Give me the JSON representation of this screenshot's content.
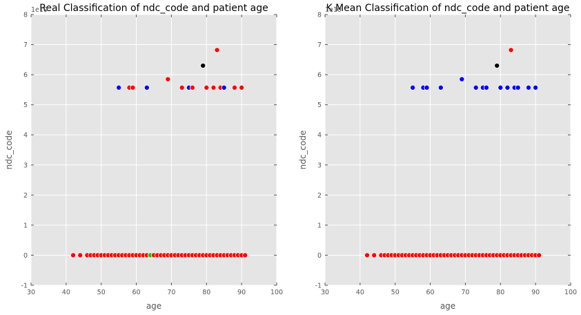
{
  "chart_data": [
    {
      "type": "scatter",
      "title": "Real Classification of ndc_code and patient age",
      "xlabel": "age",
      "ylabel": "ndc_code",
      "y_offset_label": "1e10",
      "xlim": [
        30,
        100
      ],
      "ylim": [
        -1,
        8
      ],
      "xticks": [
        30,
        40,
        50,
        60,
        70,
        80,
        90,
        100
      ],
      "yticks": [
        -1,
        0,
        1,
        2,
        3,
        4,
        5,
        6,
        7,
        8
      ],
      "grid": true,
      "points": [
        {
          "x": 42,
          "y": 0,
          "color": "red"
        },
        {
          "x": 44,
          "y": 0,
          "color": "red"
        },
        {
          "x": 46,
          "y": 0,
          "color": "red"
        },
        {
          "x": 47,
          "y": 0,
          "color": "red"
        },
        {
          "x": 48,
          "y": 0,
          "color": "red"
        },
        {
          "x": 49,
          "y": 0,
          "color": "red"
        },
        {
          "x": 50,
          "y": 0,
          "color": "red"
        },
        {
          "x": 51,
          "y": 0,
          "color": "red"
        },
        {
          "x": 52,
          "y": 0,
          "color": "red"
        },
        {
          "x": 53,
          "y": 0,
          "color": "red"
        },
        {
          "x": 54,
          "y": 0,
          "color": "red"
        },
        {
          "x": 55,
          "y": 0,
          "color": "red"
        },
        {
          "x": 56,
          "y": 0,
          "color": "red"
        },
        {
          "x": 57,
          "y": 0,
          "color": "red"
        },
        {
          "x": 58,
          "y": 0,
          "color": "red"
        },
        {
          "x": 59,
          "y": 0,
          "color": "red"
        },
        {
          "x": 60,
          "y": 0,
          "color": "red"
        },
        {
          "x": 61,
          "y": 0,
          "color": "red"
        },
        {
          "x": 62,
          "y": 0,
          "color": "red"
        },
        {
          "x": 63,
          "y": 0,
          "color": "red"
        },
        {
          "x": 64,
          "y": 0,
          "color": "green"
        },
        {
          "x": 65,
          "y": 0,
          "color": "red"
        },
        {
          "x": 66,
          "y": 0,
          "color": "red"
        },
        {
          "x": 67,
          "y": 0,
          "color": "red"
        },
        {
          "x": 68,
          "y": 0,
          "color": "red"
        },
        {
          "x": 69,
          "y": 0,
          "color": "red"
        },
        {
          "x": 70,
          "y": 0,
          "color": "red"
        },
        {
          "x": 71,
          "y": 0,
          "color": "red"
        },
        {
          "x": 72,
          "y": 0,
          "color": "red"
        },
        {
          "x": 73,
          "y": 0,
          "color": "red"
        },
        {
          "x": 74,
          "y": 0,
          "color": "red"
        },
        {
          "x": 75,
          "y": 0,
          "color": "red"
        },
        {
          "x": 76,
          "y": 0,
          "color": "red"
        },
        {
          "x": 77,
          "y": 0,
          "color": "red"
        },
        {
          "x": 78,
          "y": 0,
          "color": "red"
        },
        {
          "x": 79,
          "y": 0,
          "color": "red"
        },
        {
          "x": 80,
          "y": 0,
          "color": "red"
        },
        {
          "x": 81,
          "y": 0,
          "color": "red"
        },
        {
          "x": 82,
          "y": 0,
          "color": "red"
        },
        {
          "x": 83,
          "y": 0,
          "color": "red"
        },
        {
          "x": 84,
          "y": 0,
          "color": "red"
        },
        {
          "x": 85,
          "y": 0,
          "color": "red"
        },
        {
          "x": 86,
          "y": 0,
          "color": "red"
        },
        {
          "x": 87,
          "y": 0,
          "color": "red"
        },
        {
          "x": 88,
          "y": 0,
          "color": "red"
        },
        {
          "x": 89,
          "y": 0,
          "color": "red"
        },
        {
          "x": 90,
          "y": 0,
          "color": "red"
        },
        {
          "x": 91,
          "y": 0,
          "color": "red"
        },
        {
          "x": 55,
          "y": 5.57,
          "color": "blue"
        },
        {
          "x": 58,
          "y": 5.57,
          "color": "red"
        },
        {
          "x": 59,
          "y": 5.57,
          "color": "red"
        },
        {
          "x": 63,
          "y": 5.57,
          "color": "blue"
        },
        {
          "x": 69,
          "y": 5.85,
          "color": "red"
        },
        {
          "x": 73,
          "y": 5.57,
          "color": "red"
        },
        {
          "x": 75,
          "y": 5.57,
          "color": "blue"
        },
        {
          "x": 76,
          "y": 5.57,
          "color": "red"
        },
        {
          "x": 79,
          "y": 6.3,
          "color": "black"
        },
        {
          "x": 80,
          "y": 5.57,
          "color": "red"
        },
        {
          "x": 82,
          "y": 5.57,
          "color": "red"
        },
        {
          "x": 83,
          "y": 6.82,
          "color": "red"
        },
        {
          "x": 84,
          "y": 5.57,
          "color": "red"
        },
        {
          "x": 85,
          "y": 5.57,
          "color": "blue"
        },
        {
          "x": 88,
          "y": 5.57,
          "color": "red"
        },
        {
          "x": 90,
          "y": 5.57,
          "color": "red"
        }
      ]
    },
    {
      "type": "scatter",
      "title": "K Mean Classification of ndc_code and patient age",
      "xlabel": "age",
      "ylabel": "ndc_code",
      "y_offset_label": "1e10",
      "xlim": [
        30,
        100
      ],
      "ylim": [
        -1,
        8
      ],
      "xticks": [
        30,
        40,
        50,
        60,
        70,
        80,
        90,
        100
      ],
      "yticks": [
        -1,
        0,
        1,
        2,
        3,
        4,
        5,
        6,
        7,
        8
      ],
      "grid": true,
      "points": [
        {
          "x": 42,
          "y": 0,
          "color": "red"
        },
        {
          "x": 44,
          "y": 0,
          "color": "red"
        },
        {
          "x": 46,
          "y": 0,
          "color": "red"
        },
        {
          "x": 47,
          "y": 0,
          "color": "red"
        },
        {
          "x": 48,
          "y": 0,
          "color": "red"
        },
        {
          "x": 49,
          "y": 0,
          "color": "red"
        },
        {
          "x": 50,
          "y": 0,
          "color": "red"
        },
        {
          "x": 51,
          "y": 0,
          "color": "red"
        },
        {
          "x": 52,
          "y": 0,
          "color": "red"
        },
        {
          "x": 53,
          "y": 0,
          "color": "red"
        },
        {
          "x": 54,
          "y": 0,
          "color": "red"
        },
        {
          "x": 55,
          "y": 0,
          "color": "red"
        },
        {
          "x": 56,
          "y": 0,
          "color": "red"
        },
        {
          "x": 57,
          "y": 0,
          "color": "red"
        },
        {
          "x": 58,
          "y": 0,
          "color": "red"
        },
        {
          "x": 59,
          "y": 0,
          "color": "red"
        },
        {
          "x": 60,
          "y": 0,
          "color": "red"
        },
        {
          "x": 61,
          "y": 0,
          "color": "red"
        },
        {
          "x": 62,
          "y": 0,
          "color": "red"
        },
        {
          "x": 63,
          "y": 0,
          "color": "red"
        },
        {
          "x": 64,
          "y": 0,
          "color": "red"
        },
        {
          "x": 65,
          "y": 0,
          "color": "red"
        },
        {
          "x": 66,
          "y": 0,
          "color": "red"
        },
        {
          "x": 67,
          "y": 0,
          "color": "red"
        },
        {
          "x": 68,
          "y": 0,
          "color": "red"
        },
        {
          "x": 69,
          "y": 0,
          "color": "red"
        },
        {
          "x": 70,
          "y": 0,
          "color": "red"
        },
        {
          "x": 71,
          "y": 0,
          "color": "red"
        },
        {
          "x": 72,
          "y": 0,
          "color": "red"
        },
        {
          "x": 73,
          "y": 0,
          "color": "red"
        },
        {
          "x": 74,
          "y": 0,
          "color": "red"
        },
        {
          "x": 75,
          "y": 0,
          "color": "red"
        },
        {
          "x": 76,
          "y": 0,
          "color": "red"
        },
        {
          "x": 77,
          "y": 0,
          "color": "red"
        },
        {
          "x": 78,
          "y": 0,
          "color": "red"
        },
        {
          "x": 79,
          "y": 0,
          "color": "red"
        },
        {
          "x": 80,
          "y": 0,
          "color": "red"
        },
        {
          "x": 81,
          "y": 0,
          "color": "red"
        },
        {
          "x": 82,
          "y": 0,
          "color": "red"
        },
        {
          "x": 83,
          "y": 0,
          "color": "red"
        },
        {
          "x": 84,
          "y": 0,
          "color": "red"
        },
        {
          "x": 85,
          "y": 0,
          "color": "red"
        },
        {
          "x": 86,
          "y": 0,
          "color": "red"
        },
        {
          "x": 87,
          "y": 0,
          "color": "red"
        },
        {
          "x": 88,
          "y": 0,
          "color": "red"
        },
        {
          "x": 89,
          "y": 0,
          "color": "red"
        },
        {
          "x": 90,
          "y": 0,
          "color": "red"
        },
        {
          "x": 91,
          "y": 0,
          "color": "red"
        },
        {
          "x": 55,
          "y": 5.57,
          "color": "blue"
        },
        {
          "x": 58,
          "y": 5.57,
          "color": "blue"
        },
        {
          "x": 59,
          "y": 5.57,
          "color": "blue"
        },
        {
          "x": 63,
          "y": 5.57,
          "color": "blue"
        },
        {
          "x": 69,
          "y": 5.85,
          "color": "blue"
        },
        {
          "x": 73,
          "y": 5.57,
          "color": "blue"
        },
        {
          "x": 75,
          "y": 5.57,
          "color": "blue"
        },
        {
          "x": 76,
          "y": 5.57,
          "color": "blue"
        },
        {
          "x": 79,
          "y": 6.3,
          "color": "black"
        },
        {
          "x": 80,
          "y": 5.57,
          "color": "blue"
        },
        {
          "x": 82,
          "y": 5.57,
          "color": "blue"
        },
        {
          "x": 83,
          "y": 6.82,
          "color": "red"
        },
        {
          "x": 84,
          "y": 5.57,
          "color": "blue"
        },
        {
          "x": 85,
          "y": 5.57,
          "color": "blue"
        },
        {
          "x": 88,
          "y": 5.57,
          "color": "blue"
        },
        {
          "x": 90,
          "y": 5.57,
          "color": "blue"
        }
      ]
    }
  ],
  "colors": {
    "plot_background": "#e5e5e5",
    "grid": "#ffffff",
    "red": "#ff0000",
    "blue": "#0000ff",
    "green": "#00cc00",
    "black": "#000000"
  }
}
